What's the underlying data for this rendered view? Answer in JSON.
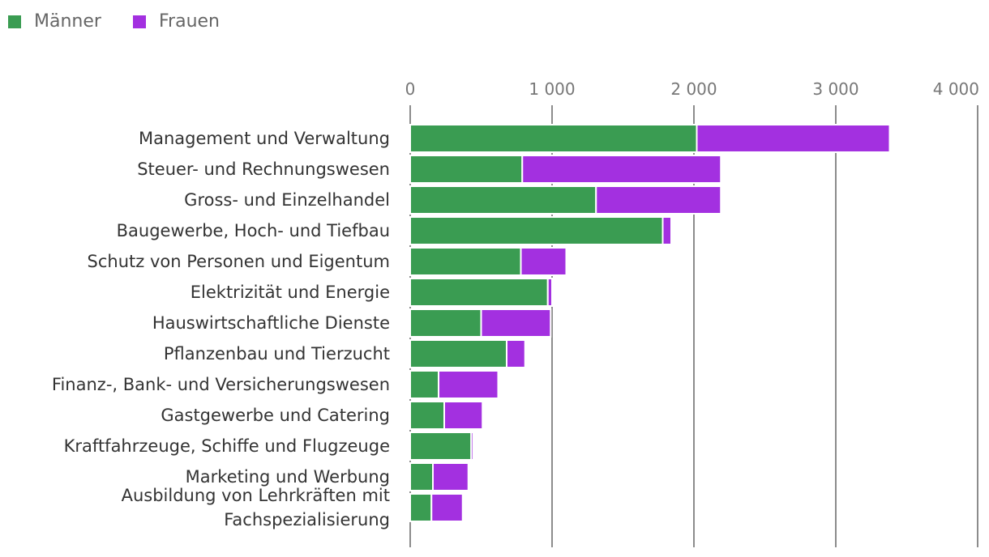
{
  "chart_data": {
    "type": "bar",
    "orientation": "horizontal",
    "stacked": true,
    "legend": {
      "position": "top-left",
      "items": [
        {
          "name": "Männer",
          "color": "#3a9c52"
        },
        {
          "name": "Frauen",
          "color": "#a330e0"
        }
      ]
    },
    "xlim": [
      0,
      4000
    ],
    "xticks": [
      0,
      1000,
      2000,
      3000,
      4000
    ],
    "xtick_labels": [
      "0",
      "1 000",
      "2 000",
      "3 000",
      "4 000"
    ],
    "grid": true,
    "categories": [
      "Management und Verwaltung",
      "Steuer- und Rechnungswesen",
      "Gross- und Einzelhandel",
      "Baugewerbe, Hoch- und Tiefbau",
      "Schutz von Personen und Eigentum",
      "Elektrizität und Energie",
      "Hauswirtschaftliche Dienste",
      "Pflanzenbau und Tierzucht",
      "Finanz-, Bank- und Versicherungswesen",
      "Gastgewerbe und Catering",
      "Kraftfahrzeuge, Schiffe und Flugzeuge",
      "Marketing und Werbung",
      "Ausbildung von Lehrkräften mit Fachspezialisierung"
    ],
    "category_label_lines": [
      [
        "Management und Verwaltung"
      ],
      [
        "Steuer- und Rechnungswesen"
      ],
      [
        "Gross- und Einzelhandel"
      ],
      [
        "Baugewerbe, Hoch- und Tiefbau"
      ],
      [
        "Schutz von Personen und Eigentum"
      ],
      [
        "Elektrizität und Energie"
      ],
      [
        "Hauswirtschaftliche Dienste"
      ],
      [
        "Pflanzenbau und Tierzucht"
      ],
      [
        "Finanz-, Bank- und Versicherungswesen"
      ],
      [
        "Gastgewerbe und Catering"
      ],
      [
        "Kraftfahrzeuge, Schiffe und Flugzeuge"
      ],
      [
        "Marketing und Werbung"
      ],
      [
        "Ausbildung von Lehrkräften mit",
        "Fachspezialisierung"
      ]
    ],
    "series": [
      {
        "name": "Männer",
        "color": "#3a9c52",
        "values": [
          2020,
          790,
          1310,
          1780,
          780,
          970,
          500,
          680,
          200,
          240,
          430,
          160,
          150
        ]
      },
      {
        "name": "Frauen",
        "color": "#a330e0",
        "values": [
          1360,
          1400,
          880,
          60,
          320,
          30,
          490,
          130,
          420,
          270,
          15,
          250,
          220
        ]
      }
    ]
  }
}
